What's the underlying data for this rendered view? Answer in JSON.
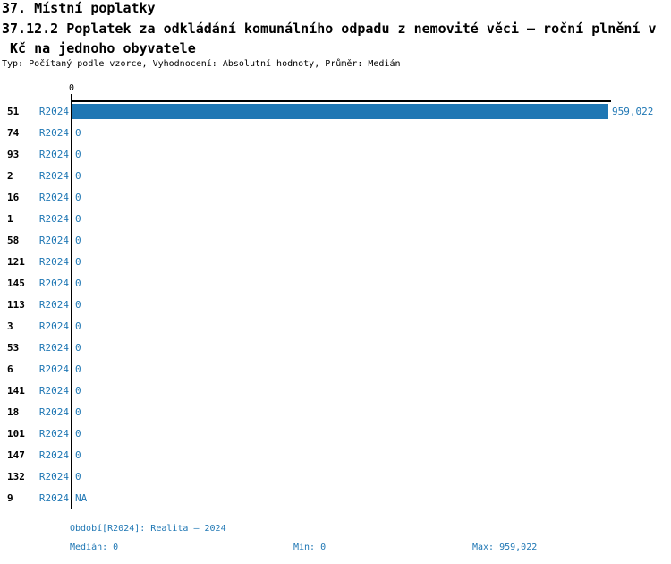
{
  "header": {
    "title_line1": "37. Místní poplatky",
    "title_line2": "37.12.2 Poplatek za odkládání komunálního odpadu z nemovité věci – roční plnění v",
    "title_line3": " Kč na jednoho obyvatele",
    "subtitle": "Typ: Počítaný podle vzorce, Vyhodnocení: Absolutní hodnoty, Průměr: Medián"
  },
  "chart_data": {
    "type": "bar",
    "orientation": "horizontal",
    "title": "37.12.2 Poplatek za odkládání komunálního odpadu z nemovité věci – roční plnění v Kč na jednoho obyvatele",
    "axis_tick_label": "0",
    "xlim": [
      0,
      959022
    ],
    "bar_color": "#1f77b4",
    "text_color": "#1f77b4",
    "rows": [
      {
        "id": "51",
        "period": "R2024",
        "value": 959022,
        "label": "959,022"
      },
      {
        "id": "74",
        "period": "R2024",
        "value": 0,
        "label": "0"
      },
      {
        "id": "93",
        "period": "R2024",
        "value": 0,
        "label": "0"
      },
      {
        "id": "2",
        "period": "R2024",
        "value": 0,
        "label": "0"
      },
      {
        "id": "16",
        "period": "R2024",
        "value": 0,
        "label": "0"
      },
      {
        "id": "1",
        "period": "R2024",
        "value": 0,
        "label": "0"
      },
      {
        "id": "58",
        "period": "R2024",
        "value": 0,
        "label": "0"
      },
      {
        "id": "121",
        "period": "R2024",
        "value": 0,
        "label": "0"
      },
      {
        "id": "145",
        "period": "R2024",
        "value": 0,
        "label": "0"
      },
      {
        "id": "113",
        "period": "R2024",
        "value": 0,
        "label": "0"
      },
      {
        "id": "3",
        "period": "R2024",
        "value": 0,
        "label": "0"
      },
      {
        "id": "53",
        "period": "R2024",
        "value": 0,
        "label": "0"
      },
      {
        "id": "6",
        "period": "R2024",
        "value": 0,
        "label": "0"
      },
      {
        "id": "141",
        "period": "R2024",
        "value": 0,
        "label": "0"
      },
      {
        "id": "18",
        "period": "R2024",
        "value": 0,
        "label": "0"
      },
      {
        "id": "101",
        "period": "R2024",
        "value": 0,
        "label": "0"
      },
      {
        "id": "147",
        "period": "R2024",
        "value": 0,
        "label": "0"
      },
      {
        "id": "132",
        "period": "R2024",
        "value": 0,
        "label": "0"
      },
      {
        "id": "9",
        "period": "R2024",
        "value": null,
        "label": "NA"
      }
    ]
  },
  "footer": {
    "period_line": "Období[R2024]: Realita – 2024",
    "median": "Medián: 0",
    "min": "Min: 0",
    "max": "Max: 959,022"
  }
}
